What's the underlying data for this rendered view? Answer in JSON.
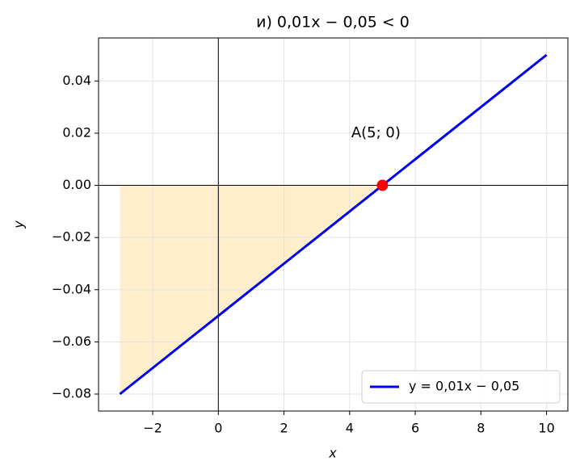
{
  "chart_data": {
    "type": "line",
    "title": "и) 0,01x − 0,05 < 0",
    "xlabel": "x",
    "ylabel": "y",
    "xlim": [
      -3.65,
      10.65
    ],
    "ylim": [
      -0.0865,
      0.0565
    ],
    "xticks": [
      {
        "value": -2,
        "label": "−2"
      },
      0,
      2,
      4,
      6,
      8,
      10
    ],
    "yticks": [
      {
        "value": -0.08,
        "label": "−0.08"
      },
      {
        "value": -0.06,
        "label": "−0.06"
      },
      {
        "value": -0.04,
        "label": "−0.04"
      },
      {
        "value": -0.02,
        "label": "−0.02"
      },
      {
        "value": 0,
        "label": "0.00"
      },
      0.02,
      0.04
    ],
    "grid": true,
    "legend": "lower right",
    "series": [
      {
        "name": "y = 0,01x − 0,05",
        "color": "#0000ee",
        "x": [
          -3,
          10
        ],
        "values": [
          -0.08,
          0.05
        ]
      }
    ],
    "fill": {
      "color": "#ffeecc",
      "x": [
        -3,
        5
      ],
      "values": [
        -0.08,
        0
      ]
    },
    "points": [
      {
        "label": "A(5; 0)",
        "x": 5,
        "y": 0,
        "color": "#ff0000",
        "label_x": 4.05,
        "label_y": 0.02
      }
    ]
  }
}
